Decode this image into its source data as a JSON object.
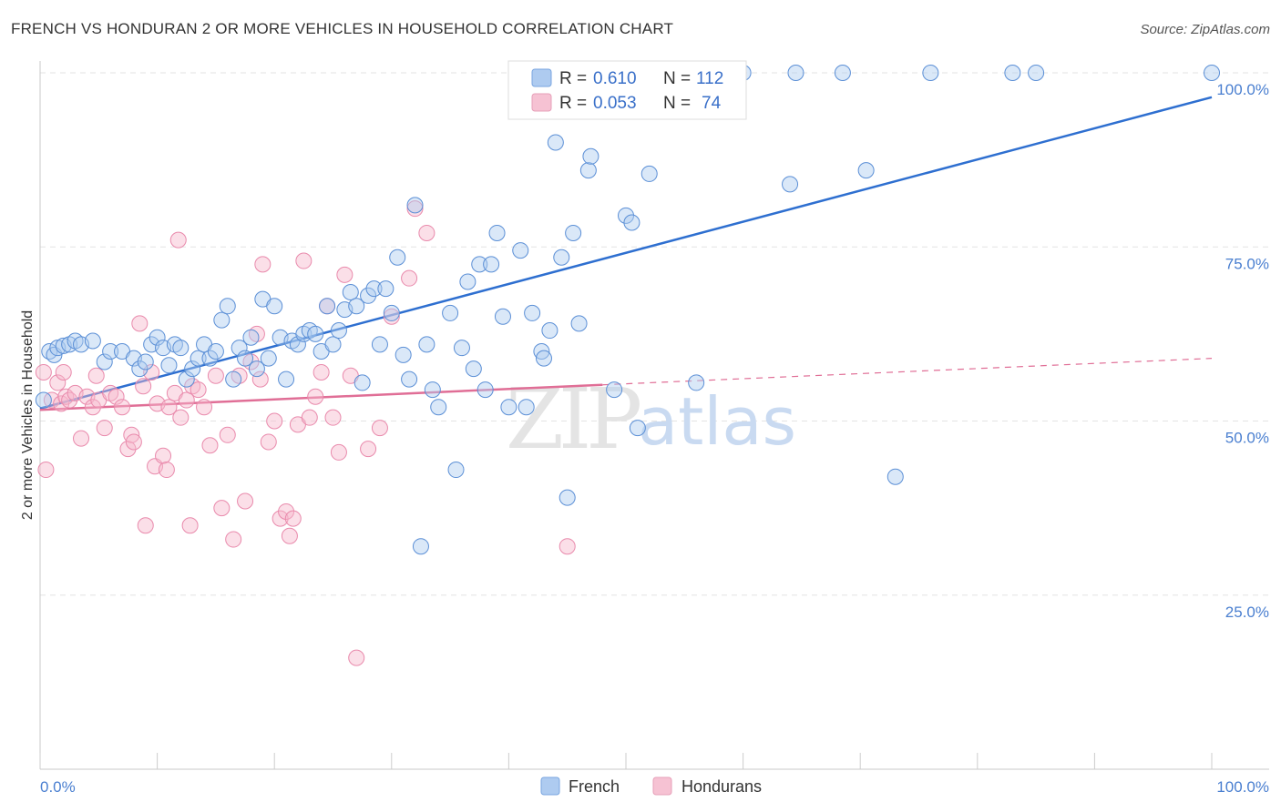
{
  "title": "FRENCH VS HONDURAN 2 OR MORE VEHICLES IN HOUSEHOLD CORRELATION CHART",
  "source": "Source: ZipAtlas.com",
  "watermark": {
    "zip": "ZIP",
    "atlas": "atlas"
  },
  "legend": {
    "r_label": "R =",
    "n_label": "N =",
    "rows": [
      {
        "r": "0.610",
        "n": "112",
        "color": "#aecbf0"
      },
      {
        "r": "0.053",
        "n": "74",
        "color": "#f6b9cd"
      }
    ]
  },
  "bottom_legend": [
    "French",
    "Hondurans"
  ],
  "chart_data": {
    "type": "scatter",
    "title": "FRENCH VS HONDURAN 2 OR MORE VEHICLES IN HOUSEHOLD CORRELATION CHART",
    "xlabel": "",
    "ylabel": "2 or more Vehicles in Household",
    "xlim": [
      0,
      100
    ],
    "ylim": [
      0,
      100
    ],
    "x_tick_labels": [
      "0.0%",
      "100.0%"
    ],
    "y_ticks": [
      25,
      50,
      75,
      100
    ],
    "y_tick_labels": [
      "25.0%",
      "50.0%",
      "75.0%",
      "100.0%"
    ],
    "grid": true,
    "series": [
      {
        "name": "French",
        "color": "#5b8fd6",
        "fill": "#aecbf0",
        "trend": {
          "x": [
            0,
            100
          ],
          "y": [
            51.8,
            96.5
          ],
          "style": "solid",
          "color": "#2e6fd0"
        },
        "points": [
          [
            0.3,
            53.0
          ],
          [
            0.8,
            60.0
          ],
          [
            1.2,
            59.5
          ],
          [
            1.5,
            60.5
          ],
          [
            2.0,
            60.8
          ],
          [
            2.5,
            61.0
          ],
          [
            3.0,
            61.5
          ],
          [
            3.5,
            61.0
          ],
          [
            4.5,
            61.5
          ],
          [
            5.5,
            58.5
          ],
          [
            6.0,
            60.0
          ],
          [
            7.0,
            60.0
          ],
          [
            8.0,
            59.0
          ],
          [
            8.5,
            57.5
          ],
          [
            9.0,
            58.5
          ],
          [
            9.5,
            61.0
          ],
          [
            10.0,
            62.0
          ],
          [
            10.5,
            60.5
          ],
          [
            11.0,
            58.0
          ],
          [
            11.5,
            61.0
          ],
          [
            12.0,
            60.5
          ],
          [
            12.5,
            56.0
          ],
          [
            13.0,
            57.5
          ],
          [
            13.5,
            59.0
          ],
          [
            14.0,
            61.0
          ],
          [
            14.5,
            59.0
          ],
          [
            15.0,
            60.0
          ],
          [
            15.5,
            64.5
          ],
          [
            16.0,
            66.5
          ],
          [
            16.5,
            56.0
          ],
          [
            17.0,
            60.5
          ],
          [
            17.5,
            59.0
          ],
          [
            18.0,
            62.0
          ],
          [
            18.5,
            57.5
          ],
          [
            19.0,
            67.5
          ],
          [
            19.5,
            59.0
          ],
          [
            20.0,
            66.5
          ],
          [
            20.5,
            62.0
          ],
          [
            21.0,
            56.0
          ],
          [
            21.5,
            61.5
          ],
          [
            22.0,
            61.0
          ],
          [
            22.5,
            62.5
          ],
          [
            23.0,
            63.0
          ],
          [
            23.5,
            62.5
          ],
          [
            24.0,
            60.0
          ],
          [
            24.5,
            66.5
          ],
          [
            25.0,
            61.0
          ],
          [
            25.5,
            63.0
          ],
          [
            26.0,
            66.0
          ],
          [
            26.5,
            68.5
          ],
          [
            27.0,
            66.5
          ],
          [
            27.5,
            55.5
          ],
          [
            28.0,
            68.0
          ],
          [
            28.5,
            69.0
          ],
          [
            29.0,
            61.0
          ],
          [
            29.5,
            69.0
          ],
          [
            30.0,
            65.5
          ],
          [
            30.5,
            73.5
          ],
          [
            31.0,
            59.5
          ],
          [
            31.5,
            56.0
          ],
          [
            32.0,
            81.0
          ],
          [
            32.5,
            32.0
          ],
          [
            33.0,
            61.0
          ],
          [
            33.5,
            54.5
          ],
          [
            34.0,
            52.0
          ],
          [
            35.0,
            65.5
          ],
          [
            35.5,
            43.0
          ],
          [
            36.0,
            60.5
          ],
          [
            36.5,
            70.0
          ],
          [
            37.0,
            57.5
          ],
          [
            37.5,
            72.5
          ],
          [
            38.0,
            54.5
          ],
          [
            38.5,
            72.5
          ],
          [
            39.0,
            77.0
          ],
          [
            39.5,
            65.0
          ],
          [
            40.0,
            52.0
          ],
          [
            41.0,
            74.5
          ],
          [
            41.5,
            52.0
          ],
          [
            42.0,
            65.5
          ],
          [
            42.5,
            100.0
          ],
          [
            42.8,
            60.0
          ],
          [
            43.0,
            59.0
          ],
          [
            43.5,
            63.0
          ],
          [
            44.0,
            90.0
          ],
          [
            44.5,
            73.5
          ],
          [
            45.0,
            39.0
          ],
          [
            45.5,
            77.0
          ],
          [
            46.0,
            64.0
          ],
          [
            46.5,
            100.0
          ],
          [
            46.8,
            86.0
          ],
          [
            47.0,
            88.0
          ],
          [
            48.0,
            100.0
          ],
          [
            49.0,
            54.5
          ],
          [
            50.0,
            79.5
          ],
          [
            50.5,
            78.5
          ],
          [
            51.0,
            49.0
          ],
          [
            52.0,
            85.5
          ],
          [
            53.5,
            100.0
          ],
          [
            56.0,
            55.5
          ],
          [
            60.0,
            100.0
          ],
          [
            64.0,
            84.0
          ],
          [
            64.5,
            100.0
          ],
          [
            68.5,
            100.0
          ],
          [
            70.5,
            86.0
          ],
          [
            73.0,
            42.0
          ],
          [
            76.0,
            100.0
          ],
          [
            83.0,
            100.0
          ],
          [
            85.0,
            100.0
          ],
          [
            100.0,
            100.0
          ]
        ]
      },
      {
        "name": "Hondurans",
        "color": "#e98aac",
        "fill": "#f6b9cd",
        "trend": {
          "x": [
            0,
            48,
            100
          ],
          "y": [
            51.6,
            55.2,
            59.0
          ],
          "style": "solid-then-dashed",
          "color": "#e06e96"
        },
        "points": [
          [
            0.3,
            57.0
          ],
          [
            0.5,
            43.0
          ],
          [
            1.0,
            53.0
          ],
          [
            1.5,
            55.5
          ],
          [
            1.8,
            52.5
          ],
          [
            2.0,
            57.0
          ],
          [
            2.2,
            53.5
          ],
          [
            2.5,
            53.0
          ],
          [
            3.0,
            54.0
          ],
          [
            3.5,
            47.5
          ],
          [
            4.0,
            53.5
          ],
          [
            4.5,
            52.0
          ],
          [
            4.8,
            56.5
          ],
          [
            5.0,
            53.0
          ],
          [
            5.5,
            49.0
          ],
          [
            6.0,
            54.0
          ],
          [
            6.5,
            53.5
          ],
          [
            7.0,
            52.0
          ],
          [
            7.5,
            46.0
          ],
          [
            7.8,
            48.0
          ],
          [
            8.0,
            47.0
          ],
          [
            8.5,
            64.0
          ],
          [
            8.8,
            55.0
          ],
          [
            9.0,
            35.0
          ],
          [
            9.5,
            57.0
          ],
          [
            9.8,
            43.5
          ],
          [
            10.0,
            52.5
          ],
          [
            10.5,
            45.0
          ],
          [
            10.8,
            43.0
          ],
          [
            11.0,
            52.0
          ],
          [
            11.5,
            54.0
          ],
          [
            11.8,
            76.0
          ],
          [
            12.0,
            50.5
          ],
          [
            12.5,
            53.0
          ],
          [
            12.8,
            35.0
          ],
          [
            13.0,
            55.0
          ],
          [
            13.5,
            54.5
          ],
          [
            14.0,
            52.0
          ],
          [
            14.5,
            46.5
          ],
          [
            15.0,
            56.5
          ],
          [
            15.5,
            37.5
          ],
          [
            16.0,
            48.0
          ],
          [
            16.5,
            33.0
          ],
          [
            17.0,
            56.5
          ],
          [
            17.5,
            38.5
          ],
          [
            18.0,
            58.5
          ],
          [
            18.5,
            62.5
          ],
          [
            18.8,
            56.0
          ],
          [
            19.0,
            72.5
          ],
          [
            19.5,
            47.0
          ],
          [
            20.0,
            50.0
          ],
          [
            20.5,
            36.0
          ],
          [
            21.0,
            37.0
          ],
          [
            21.3,
            33.5
          ],
          [
            21.6,
            36.0
          ],
          [
            22.0,
            49.5
          ],
          [
            22.5,
            73.0
          ],
          [
            23.0,
            50.5
          ],
          [
            23.5,
            53.5
          ],
          [
            24.0,
            57.0
          ],
          [
            24.5,
            66.5
          ],
          [
            25.0,
            50.5
          ],
          [
            25.5,
            45.5
          ],
          [
            26.0,
            71.0
          ],
          [
            26.5,
            56.5
          ],
          [
            27.0,
            16.0
          ],
          [
            28.0,
            46.0
          ],
          [
            29.0,
            49.0
          ],
          [
            30.0,
            65.0
          ],
          [
            31.5,
            70.5
          ],
          [
            32.0,
            80.5
          ],
          [
            33.0,
            77.0
          ],
          [
            45.0,
            32.0
          ]
        ]
      }
    ]
  }
}
